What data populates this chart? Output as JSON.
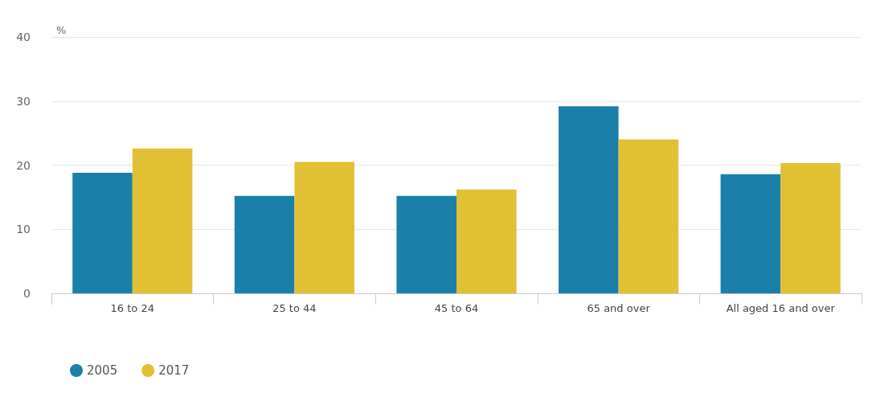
{
  "chart_data": {
    "type": "bar",
    "ylabel": "%",
    "categories": [
      "16 to 24",
      "25 to 44",
      "45 to 64",
      "65 and over",
      "All aged 16 and over"
    ],
    "series": [
      {
        "name": "2005",
        "color": "#1a80aa",
        "values": [
          18.8,
          15.2,
          15.2,
          29.2,
          18.6
        ]
      },
      {
        "name": "2017",
        "color": "#e2c034",
        "values": [
          22.6,
          20.5,
          16.2,
          24.0,
          20.3
        ]
      }
    ],
    "ylim": [
      0,
      40
    ],
    "yticks": [
      0,
      10,
      20,
      30,
      40
    ],
    "grid": "y",
    "legend": "bottom left"
  }
}
